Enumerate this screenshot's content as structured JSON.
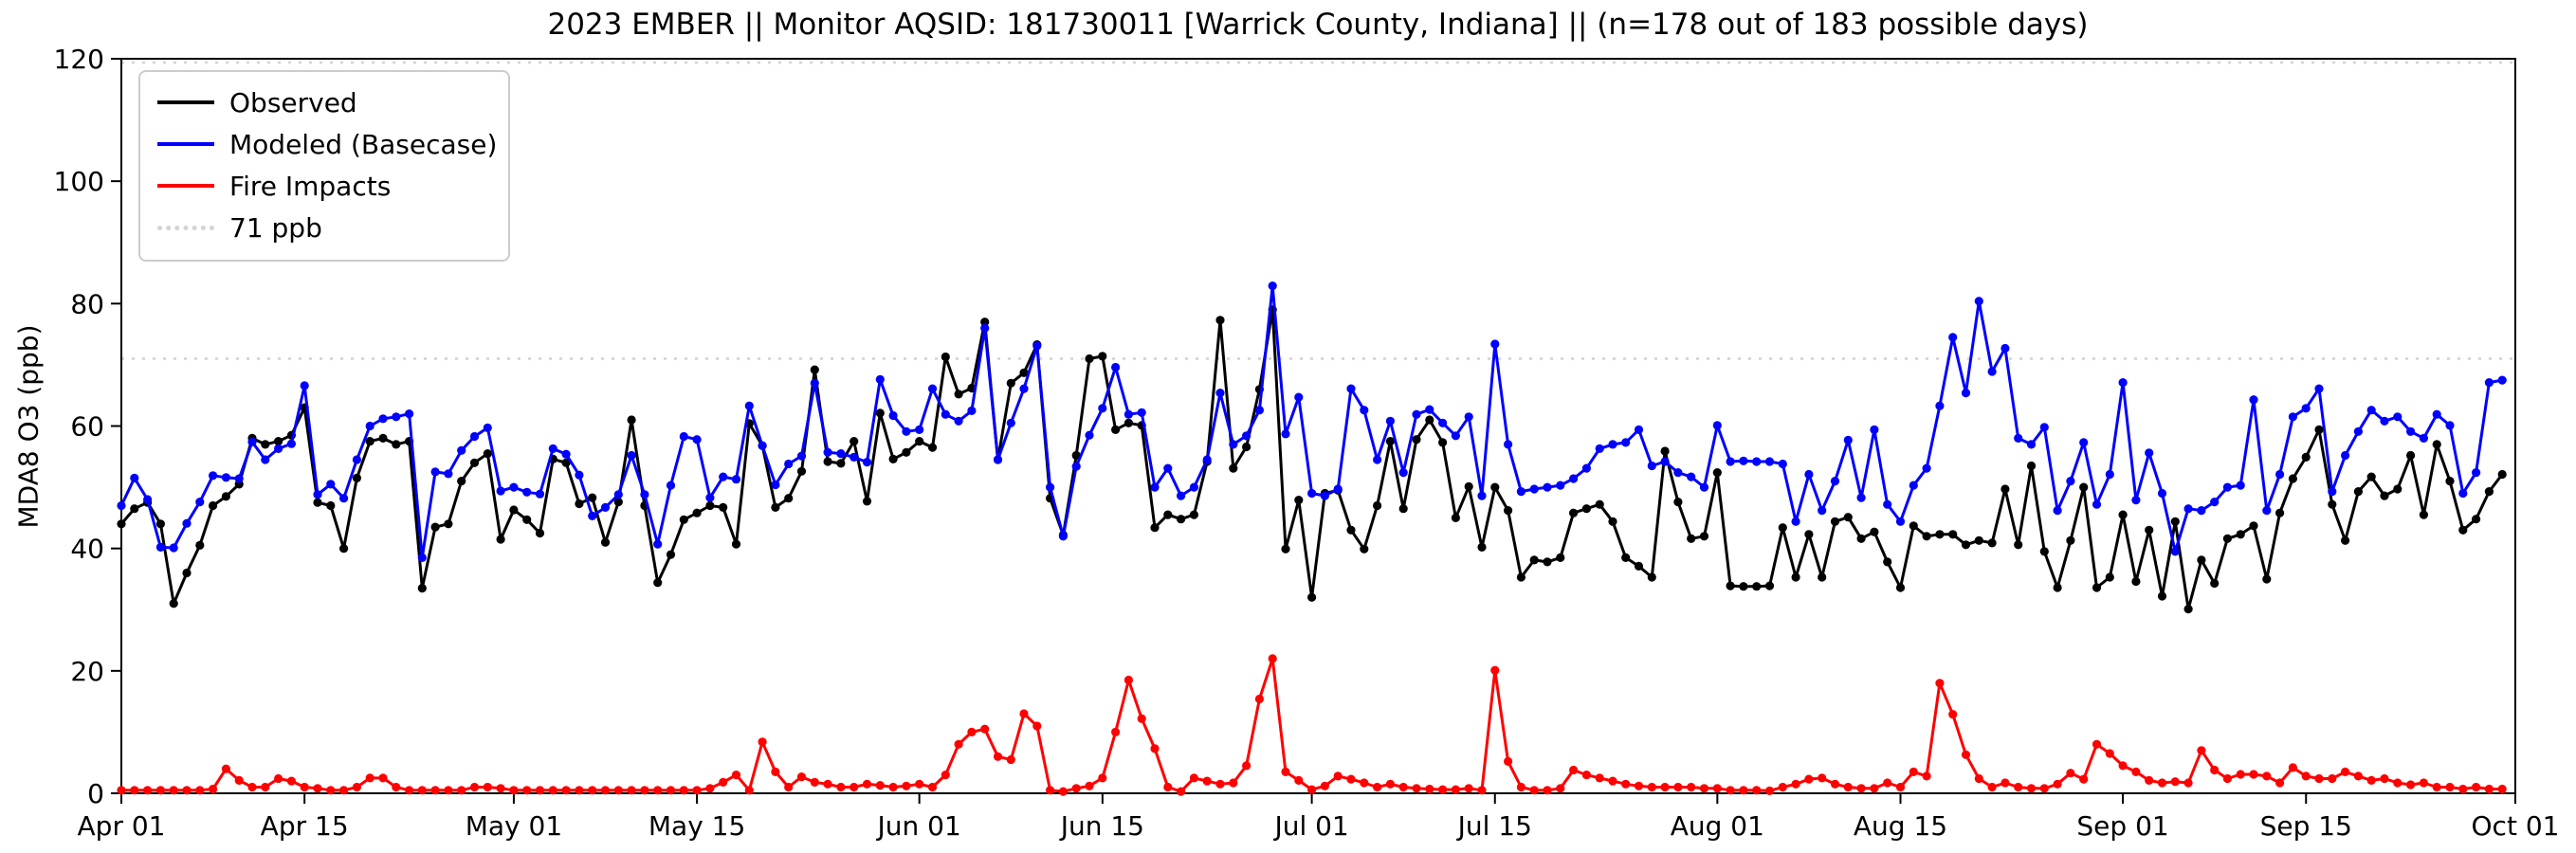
{
  "title": "2023 EMBER || Monitor AQSID: 181730011 [Warrick County, Indiana] || (n=178 out of 183 possible days)",
  "legend": {
    "items": [
      {
        "label": "Observed",
        "color": "#000000",
        "style": "solid"
      },
      {
        "label": "Modeled (Basecase)",
        "color": "#0000ff",
        "style": "solid"
      },
      {
        "label": "Fire Impacts",
        "color": "#ff0000",
        "style": "solid"
      },
      {
        "label": "71 ppb",
        "color": "#d3d3d3",
        "style": "dotted"
      }
    ]
  },
  "chart_data": {
    "type": "line",
    "title": "2023 EMBER || Monitor AQSID: 181730011 [Warrick County, Indiana] || (n=178 out of 183 possible days)",
    "xlabel": "",
    "ylabel": "MDA8 O3 (ppb)",
    "ylim": [
      0,
      120
    ],
    "y_ticks": [
      0,
      20,
      40,
      60,
      80,
      100,
      120
    ],
    "x_start_date": "2023-04-01",
    "x_end_date": "2023-10-01",
    "x_tick_labels": [
      "Apr 01",
      "Apr 15",
      "May 01",
      "May 15",
      "Jun 01",
      "Jun 15",
      "Jul 01",
      "Jul 15",
      "Aug 01",
      "Aug 15",
      "Sep 01",
      "Sep 15",
      "Oct 01"
    ],
    "x_tick_day_offsets": [
      0,
      14,
      30,
      44,
      61,
      75,
      91,
      105,
      122,
      136,
      153,
      167,
      183
    ],
    "grid": false,
    "legend_position": "upper-left",
    "reference_lines": [
      {
        "label": "71 ppb",
        "value": 71,
        "color": "#d3d3d3",
        "style": "dotted"
      },
      {
        "label": "",
        "value": 120,
        "color": "#d3d3d3",
        "style": "dotted"
      }
    ],
    "series": [
      {
        "name": "Observed",
        "color": "#000000",
        "marker": "circle",
        "values": [
          44,
          46.5,
          47.5,
          44,
          31,
          36,
          40.5,
          47,
          48.5,
          50.5,
          58,
          57,
          57.5,
          58.5,
          63,
          47.5,
          47,
          40,
          51.5,
          57.5,
          58,
          57,
          57.5,
          33.5,
          43.5,
          44,
          51,
          54,
          55.5,
          41.5,
          46.3,
          44.7,
          42.5,
          54.6,
          54,
          47.3,
          48.3,
          41,
          47.6,
          61,
          47,
          34.4,
          39,
          44.7,
          45.8,
          47,
          46.7,
          40.7,
          60.4,
          56.8,
          46.7,
          48.2,
          52.6,
          69.2,
          54.2,
          53.9,
          57.5,
          47.7,
          62.1,
          54.6,
          55.7,
          57.5,
          56.5,
          71.3,
          65.2,
          66.2,
          77,
          54.5,
          67,
          68.7,
          73.3,
          48.2,
          42.2,
          55.2,
          71,
          71.4,
          59.4,
          60.5,
          60.1,
          43.4,
          45.5,
          44.8,
          45.5,
          54.2,
          77.3,
          53.1,
          56.6,
          66,
          79,
          39.9,
          47.9,
          32,
          49,
          49.5,
          43,
          39.9,
          47,
          57.5,
          46.5,
          57.8,
          61,
          57.3,
          45,
          50.1,
          40.2,
          50,
          46.2,
          35.3,
          38.1,
          37.8,
          38.5,
          45.8,
          46.5,
          47.2,
          44.4,
          38.5,
          37.1,
          35.3,
          55.9,
          47.6,
          41.6,
          42,
          52.4,
          33.9,
          33.8,
          33.8,
          33.9,
          43.4,
          35.3,
          42.3,
          35.3,
          44.4,
          45.1,
          41.6,
          42.7,
          37.8,
          33.6,
          43.7,
          42,
          42.3,
          42.3,
          40.6,
          41.3,
          40.9,
          49.7,
          40.6,
          53.5,
          39.5,
          33.6,
          41.3,
          50,
          33.6,
          35.3,
          45.5,
          34.6,
          43,
          32.2,
          44.4,
          30.1,
          38.1,
          34.3,
          41.6,
          42.3,
          43.7,
          35,
          45.8,
          51.4,
          54.9,
          59.4,
          47.2,
          41.3,
          49.3,
          51.7,
          48.6,
          49.7,
          55.2,
          45.5,
          57,
          51,
          43,
          44.8,
          49.3,
          52.1
        ]
      },
      {
        "name": "Modeled (Basecase)",
        "color": "#0000ff",
        "marker": "circle",
        "values": [
          47,
          51.5,
          48,
          40.2,
          40.1,
          44.1,
          47.6,
          51.9,
          51.6,
          51.4,
          57.4,
          54.5,
          56.3,
          57.1,
          66.6,
          48.8,
          50.5,
          48.2,
          54.5,
          60,
          61.2,
          61.5,
          62,
          38.5,
          52.5,
          52.2,
          56,
          58.3,
          59.7,
          49.4,
          50,
          49.2,
          48.9,
          56.3,
          55.4,
          52,
          45.3,
          46.7,
          48.8,
          55.2,
          48.8,
          40.7,
          50.3,
          58.3,
          57.8,
          48.3,
          51.7,
          51.3,
          63.3,
          56.8,
          50.4,
          53.8,
          55.1,
          67,
          55.7,
          55.5,
          54.9,
          54.1,
          67.6,
          61.7,
          59.1,
          59.4,
          66.1,
          61.9,
          60.8,
          62.5,
          76,
          54.5,
          60.5,
          66.1,
          73.1,
          50,
          42,
          53.4,
          58.5,
          62.9,
          69.6,
          61.9,
          62.2,
          50,
          53.1,
          48.6,
          50,
          54.5,
          65.4,
          57,
          58.4,
          62.6,
          82.9,
          58.7,
          64.7,
          49,
          48.6,
          49.7,
          66.1,
          62.6,
          54.5,
          60.8,
          52.4,
          61.9,
          62.7,
          60.5,
          58.4,
          61.5,
          48.6,
          73.4,
          57,
          49.3,
          49.7,
          50,
          50.3,
          51.4,
          53.1,
          56.3,
          57,
          57.3,
          59.4,
          53.5,
          54.2,
          52.4,
          51.7,
          50,
          60.1,
          54.2,
          54.3,
          54.2,
          54.2,
          53.8,
          44.4,
          52.1,
          46.2,
          51,
          57.7,
          48.3,
          59.4,
          47.2,
          44.4,
          50.3,
          53.1,
          63.3,
          74.5,
          65.4,
          80.4,
          68.9,
          72.7,
          58,
          57,
          59.8,
          46.2,
          51,
          57.3,
          47.2,
          52.1,
          67.1,
          47.9,
          55.6,
          49,
          39.5,
          46.5,
          46.2,
          47.6,
          50,
          50.3,
          64.3,
          46.2,
          52.1,
          61.5,
          62.9,
          66.1,
          49.3,
          55.2,
          59.1,
          62.6,
          60.8,
          61.5,
          59.1,
          58,
          61.9,
          60.1,
          49,
          52.4,
          67.1,
          67.5
        ]
      },
      {
        "name": "Fire Impacts",
        "color": "#ff0000",
        "marker": "circle",
        "values": [
          0.5,
          0.5,
          0.5,
          0.5,
          0.5,
          0.5,
          0.5,
          0.7,
          4,
          2.1,
          1,
          1,
          2.4,
          2,
          1,
          0.8,
          0.5,
          0.5,
          1,
          2.5,
          2.5,
          1,
          0.5,
          0.5,
          0.5,
          0.5,
          0.5,
          1,
          1,
          0.8,
          0.5,
          0.5,
          0.5,
          0.5,
          0.5,
          0.5,
          0.5,
          0.5,
          0.5,
          0.5,
          0.5,
          0.5,
          0.5,
          0.5,
          0.5,
          0.8,
          1.8,
          3,
          0.5,
          8.4,
          3.5,
          1,
          2.7,
          1.8,
          1.5,
          1,
          1,
          1.5,
          1.3,
          1,
          1.2,
          1.5,
          1,
          3,
          8,
          10,
          10.5,
          6,
          5.5,
          13,
          11,
          0.5,
          0.3,
          0.8,
          1.2,
          2.5,
          10,
          18.5,
          12.2,
          7.3,
          1,
          0.3,
          2.5,
          2,
          1.5,
          1.7,
          4.5,
          15.4,
          22,
          3.5,
          2.1,
          0.6,
          1.2,
          2.8,
          2.3,
          1.7,
          1,
          1.5,
          1,
          0.8,
          0.7,
          0.6,
          0.6,
          0.8,
          0.5,
          20.1,
          5.2,
          1,
          0.5,
          0.5,
          0.8,
          3.8,
          3,
          2.5,
          2,
          1.5,
          1.2,
          1,
          1,
          1,
          1,
          0.8,
          0.8,
          0.5,
          0.5,
          0.5,
          0.4,
          1,
          1.5,
          2.3,
          2.5,
          1.5,
          1,
          0.8,
          0.8,
          1.7,
          1,
          3.5,
          2.8,
          18,
          12.9,
          6.3,
          2.4,
          1,
          1.7,
          1,
          0.8,
          0.8,
          1.5,
          3.3,
          2.3,
          8,
          6.5,
          4.5,
          3.5,
          2.1,
          1.7,
          1.9,
          1.7,
          7,
          3.8,
          2.4,
          3.1,
          3.1,
          2.8,
          1.7,
          4.2,
          2.8,
          2.4,
          2.4,
          3.5,
          2.8,
          2.1,
          2.4,
          1.7,
          1.4,
          1.7,
          1,
          1,
          0.7,
          1,
          0.7,
          0.7
        ]
      }
    ]
  }
}
